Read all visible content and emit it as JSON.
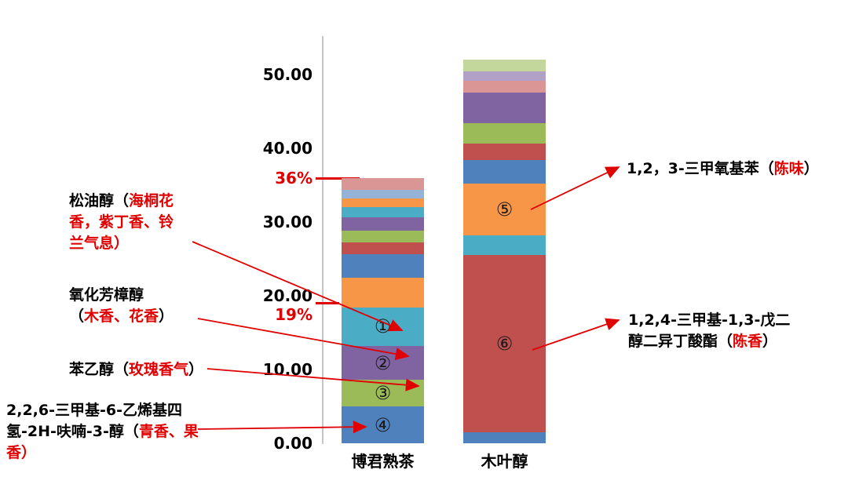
{
  "colors": {
    "accent_red": "#e00000",
    "axis_line": "#c6c6c6",
    "text": "#000000"
  },
  "axis": {
    "ticks": [
      "50.00",
      "40.00",
      "30.00",
      "20.00",
      "10.00",
      "0.00"
    ],
    "tick_values": [
      50,
      40,
      30,
      20,
      10,
      0
    ]
  },
  "percent_markers": [
    {
      "label": "36%",
      "value": 36
    },
    {
      "label": "19%",
      "value": 19
    }
  ],
  "chart_data": {
    "type": "bar",
    "subtype": "stacked",
    "categories": [
      "博君熟茶",
      "木叶醇"
    ],
    "ylim": [
      0,
      55
    ],
    "grid": false,
    "legend": "none",
    "palette": {
      "blue": "#4F81BD",
      "red": "#C0504D",
      "green": "#9BBB59",
      "purple": "#8064A2",
      "teal": "#4BACC6",
      "orange": "#F79646",
      "lightblue": "#95B3D7",
      "pink": "#D99694",
      "lavender": "#B2A1C7",
      "lightgreen": "#C3D69B"
    },
    "bars": [
      {
        "category": "博君熟茶",
        "total": 36.0,
        "segments": [
          {
            "color": "blue",
            "value": 5.0,
            "marker": "④"
          },
          {
            "color": "green",
            "value": 3.6,
            "marker": "③"
          },
          {
            "color": "purple",
            "value": 4.6,
            "marker": "②"
          },
          {
            "color": "teal",
            "value": 5.2,
            "marker": "①"
          },
          {
            "color": "orange",
            "value": 4.0
          },
          {
            "color": "blue",
            "value": 3.2
          },
          {
            "color": "red",
            "value": 1.6
          },
          {
            "color": "green",
            "value": 1.6
          },
          {
            "color": "purple",
            "value": 1.8
          },
          {
            "color": "teal",
            "value": 1.4
          },
          {
            "color": "orange",
            "value": 1.2
          },
          {
            "color": "lightblue",
            "value": 1.2
          },
          {
            "color": "pink",
            "value": 1.6
          }
        ]
      },
      {
        "category": "木叶醇",
        "total": 52.0,
        "segments": [
          {
            "color": "blue",
            "value": 1.5
          },
          {
            "color": "red",
            "value": 24.0,
            "marker": "⑥"
          },
          {
            "color": "teal",
            "value": 2.7
          },
          {
            "color": "orange",
            "value": 7.0,
            "marker": "⑤"
          },
          {
            "color": "blue",
            "value": 3.2
          },
          {
            "color": "red",
            "value": 2.2
          },
          {
            "color": "green",
            "value": 2.8
          },
          {
            "color": "purple",
            "value": 4.2
          },
          {
            "color": "pink",
            "value": 1.6
          },
          {
            "color": "lavender",
            "value": 1.2
          },
          {
            "color": "lightgreen",
            "value": 1.6
          }
        ]
      }
    ]
  },
  "annotations": [
    {
      "id": "terpineol",
      "segments": [
        {
          "t": "松油醇（",
          "c": "k"
        },
        {
          "t": "海桐花香，紫丁香、铃兰气息）",
          "c": "r"
        }
      ]
    },
    {
      "id": "linalool-oxide",
      "segments": [
        {
          "t": "氧化芳樟醇\n（",
          "c": "k"
        },
        {
          "t": "木香、花香",
          "c": "r"
        },
        {
          "t": "）",
          "c": "k"
        }
      ]
    },
    {
      "id": "phenylethanol",
      "segments": [
        {
          "t": "苯乙醇（",
          "c": "k"
        },
        {
          "t": "玫瑰香气",
          "c": "r"
        },
        {
          "t": "）",
          "c": "k"
        }
      ]
    },
    {
      "id": "furanol",
      "segments": [
        {
          "t": "2,2,6-三甲基-6-乙烯基四氢-2H-呋喃-3-醇（",
          "c": "k"
        },
        {
          "t": "青香、果香）",
          "c": "r"
        }
      ]
    },
    {
      "id": "trimethoxybenzene",
      "segments": [
        {
          "t": "1,2，3-三甲氧基苯（",
          "c": "k"
        },
        {
          "t": "陈味",
          "c": "r"
        },
        {
          "t": "）",
          "c": "k"
        }
      ]
    },
    {
      "id": "ester",
      "segments": [
        {
          "t": "1,2,4-三甲基-1,3-戊二醇二异丁酸酯（",
          "c": "k"
        },
        {
          "t": "陈香",
          "c": "r"
        },
        {
          "t": "）",
          "c": "k"
        }
      ]
    }
  ]
}
